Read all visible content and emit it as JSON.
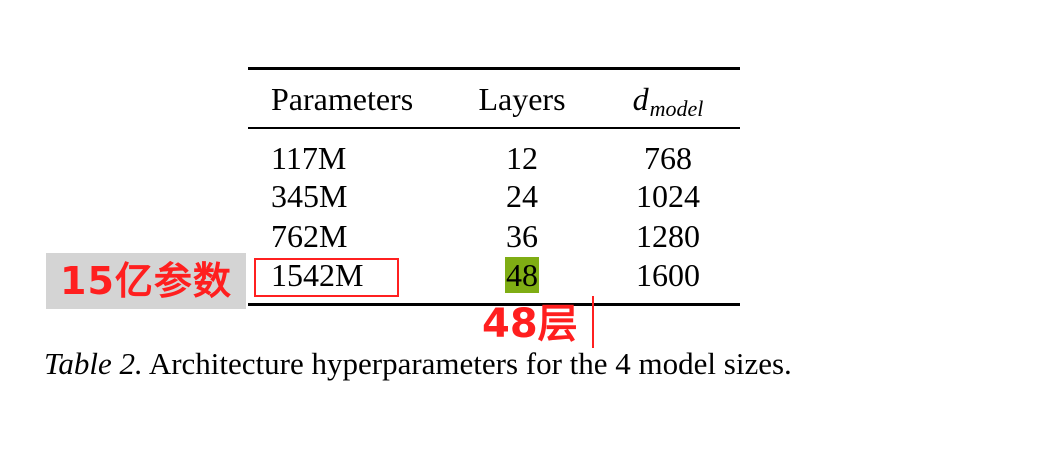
{
  "table": {
    "headers": {
      "parameters": "Parameters",
      "layers": "Layers",
      "d_model_base": "d",
      "d_model_sub": "model"
    },
    "rows": [
      {
        "parameters": "117M",
        "layers": "12",
        "d_model": "768"
      },
      {
        "parameters": "345M",
        "layers": "24",
        "d_model": "1024"
      },
      {
        "parameters": "762M",
        "layers": "36",
        "d_model": "1280"
      },
      {
        "parameters": "1542M",
        "layers": "48",
        "d_model": "1600"
      }
    ]
  },
  "caption": {
    "label": "Table 2.",
    "text": " Architecture hyperparameters for the 4 model sizes."
  },
  "annotations": {
    "params_note": "15亿参数",
    "layers_note": "48层",
    "highlight_color": "#7fad14",
    "annotation_color": "#ff2020",
    "label_bg_color": "#d4d4d4"
  }
}
